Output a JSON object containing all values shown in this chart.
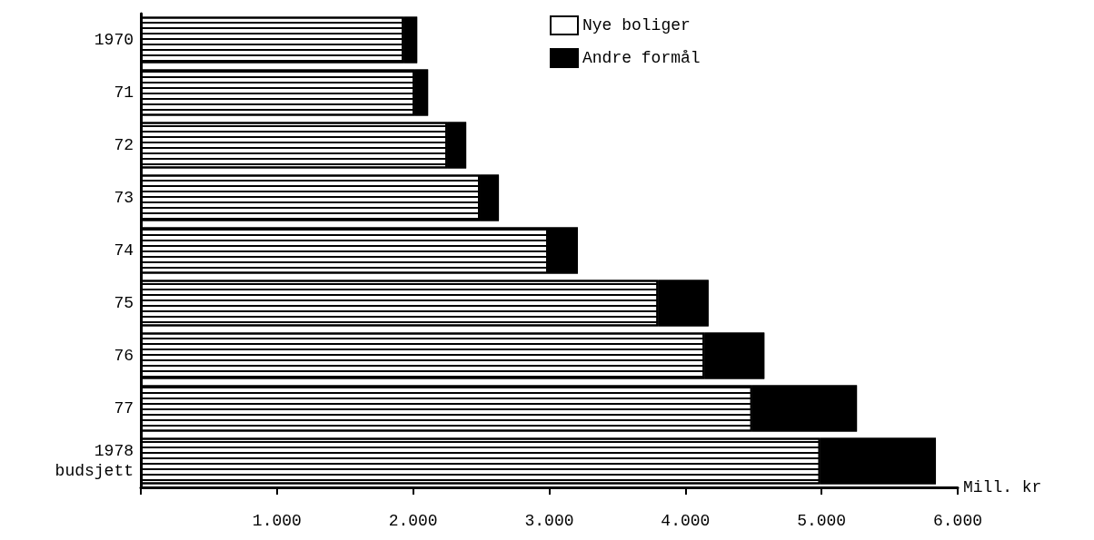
{
  "chart_data": {
    "type": "bar",
    "orientation": "horizontal",
    "stacked": true,
    "xlabel": "Mill. kr",
    "categories": [
      "1970",
      "71",
      "72",
      "73",
      "74",
      "75",
      "76",
      "77",
      "1978 budsjett"
    ],
    "series": [
      {
        "name": "Nye boliger",
        "color": "#ffffff",
        "values": [
          1930,
          2010,
          2250,
          2490,
          2990,
          3800,
          4140,
          4490,
          4990
        ]
      },
      {
        "name": "Andre formål",
        "color": "#000000",
        "values": [
          100,
          100,
          140,
          140,
          220,
          370,
          440,
          770,
          850
        ]
      }
    ],
    "xlim": [
      0,
      6000
    ],
    "xticks": [
      {
        "value": 0,
        "label": null
      },
      {
        "value": 1000,
        "label": "1.000"
      },
      {
        "value": 2000,
        "label": "2.000"
      },
      {
        "value": 3000,
        "label": "3.000"
      },
      {
        "value": 4000,
        "label": "4.000"
      },
      {
        "value": 5000,
        "label": "5.000"
      },
      {
        "value": 6000,
        "label": "6.000"
      }
    ],
    "grid": false,
    "legend": "top right"
  }
}
